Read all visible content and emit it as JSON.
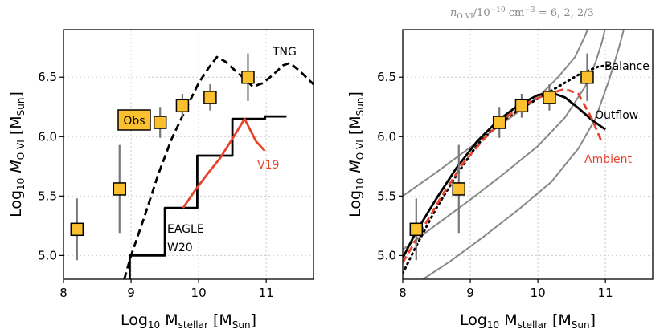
{
  "colors": {
    "marker_fill": "#fbc02d",
    "marker_edge": "#000000",
    "errorbar": "#777777",
    "red": "#e8432a",
    "gray_curve": "#888888",
    "black": "#000000",
    "grid": "#cccccc"
  },
  "chart_data": [
    {
      "id": "left",
      "type": "line",
      "xlim": [
        8,
        11.7
      ],
      "ylim": [
        4.8,
        6.9
      ],
      "xticks": [
        8,
        9,
        10,
        11
      ],
      "yticks": [
        5.0,
        5.5,
        6.0,
        6.5
      ],
      "xtick_labels": [
        "8",
        "9",
        "10",
        "11"
      ],
      "ytick_labels": [
        "5.0",
        "5.5",
        "6.0",
        "6.5"
      ],
      "grid": true,
      "xlabel": {
        "pre": "Log",
        "sub": "10",
        "mid": " M",
        "sub2": "stellar",
        "post": " [M",
        "sub3": "Sun",
        "end": "]"
      },
      "ylabel": {
        "pre": "Log",
        "sub": "10",
        "mid": " M",
        "sub2": "O VI",
        "post": " [M",
        "sub3": "Sun",
        "end": "]"
      },
      "observations": {
        "label": "Obs",
        "points": [
          {
            "x": 8.2,
            "y": 5.22,
            "err": 0.26
          },
          {
            "x": 8.83,
            "y": 5.56,
            "err": 0.37
          },
          {
            "x": 9.43,
            "y": 6.12,
            "err": 0.13
          },
          {
            "x": 9.76,
            "y": 6.26,
            "err": 0.1
          },
          {
            "x": 10.17,
            "y": 6.33,
            "err": 0.11
          },
          {
            "x": 10.73,
            "y": 6.5,
            "err": 0.2
          }
        ]
      },
      "series": [
        {
          "name": "TNG",
          "style": "dashed",
          "color": "#000000",
          "points": [
            [
              8.9,
              4.8
            ],
            [
              9.0,
              5.0
            ],
            [
              9.2,
              5.33
            ],
            [
              9.4,
              5.68
            ],
            [
              9.6,
              5.98
            ],
            [
              9.8,
              6.22
            ],
            [
              10.0,
              6.45
            ],
            [
              10.15,
              6.58
            ],
            [
              10.27,
              6.67
            ],
            [
              10.4,
              6.63
            ],
            [
              10.55,
              6.55
            ],
            [
              10.7,
              6.48
            ],
            [
              10.8,
              6.42
            ],
            [
              10.95,
              6.45
            ],
            [
              11.1,
              6.52
            ],
            [
              11.25,
              6.6
            ],
            [
              11.35,
              6.62
            ],
            [
              11.5,
              6.55
            ],
            [
              11.7,
              6.44
            ]
          ]
        },
        {
          "name": "EAGLE W20",
          "style": "solid",
          "color": "#000000",
          "points": [
            [
              8.98,
              4.8
            ],
            [
              8.98,
              5.0
            ],
            [
              9.5,
              5.0
            ],
            [
              9.5,
              5.4
            ],
            [
              9.98,
              5.4
            ],
            [
              9.98,
              5.84
            ],
            [
              10.5,
              5.84
            ],
            [
              10.5,
              6.15
            ],
            [
              10.98,
              6.15
            ],
            [
              10.98,
              6.17
            ],
            [
              11.3,
              6.17
            ]
          ]
        },
        {
          "name": "V19",
          "style": "solid",
          "color": "#e8432a",
          "points": [
            [
              9.77,
              5.4
            ],
            [
              9.95,
              5.55
            ],
            [
              10.15,
              5.7
            ],
            [
              10.32,
              5.82
            ],
            [
              10.52,
              6.0
            ],
            [
              10.68,
              6.15
            ],
            [
              10.85,
              5.96
            ],
            [
              10.98,
              5.88
            ]
          ]
        }
      ],
      "annotations": [
        "TNG",
        "EAGLE",
        "W20",
        "V19"
      ]
    },
    {
      "id": "right",
      "type": "line",
      "xlim": [
        8,
        11.7
      ],
      "ylim": [
        4.8,
        6.9
      ],
      "xticks": [
        8,
        9,
        10,
        11
      ],
      "yticks": [
        5.0,
        5.5,
        6.0,
        6.5
      ],
      "xtick_labels": [
        "8",
        "9",
        "10",
        "11"
      ],
      "ytick_labels": [
        "5.0",
        "5.5",
        "6.0",
        "6.5"
      ],
      "grid": true,
      "xlabel": {
        "pre": "Log",
        "sub": "10",
        "mid": " M",
        "sub2": "stellar",
        "post": " [M",
        "sub3": "Sun",
        "end": "]"
      },
      "ylabel": {
        "pre": "Log",
        "sub": "10",
        "mid": " M",
        "sub2": "O VI",
        "post": " [M",
        "sub3": "Sun",
        "end": "]"
      },
      "top_annotation": {
        "n": "n",
        "sub": "O VI",
        "rest": "/10",
        "sup1": "−10",
        "unit": " cm",
        "sup2": "−3",
        "vals": " = 6, 2, 2/3"
      },
      "observations": {
        "points": [
          {
            "x": 8.2,
            "y": 5.22,
            "err": 0.26
          },
          {
            "x": 8.83,
            "y": 5.56,
            "err": 0.37
          },
          {
            "x": 9.43,
            "y": 6.12,
            "err": 0.13
          },
          {
            "x": 9.76,
            "y": 6.26,
            "err": 0.1
          },
          {
            "x": 10.17,
            "y": 6.33,
            "err": 0.11
          },
          {
            "x": 10.73,
            "y": 6.5,
            "err": 0.2
          }
        ]
      },
      "series": [
        {
          "name": "n=6",
          "style": "solid",
          "color": "#888888",
          "points": [
            [
              8.0,
              5.5
            ],
            [
              8.5,
              5.7
            ],
            [
              9.0,
              5.91
            ],
            [
              9.5,
              6.12
            ],
            [
              10.0,
              6.33
            ],
            [
              10.3,
              6.5
            ],
            [
              10.55,
              6.67
            ],
            [
              10.7,
              6.85
            ],
            [
              10.75,
              6.92
            ]
          ]
        },
        {
          "name": "n=2",
          "style": "solid",
          "color": "#888888",
          "points": [
            [
              8.0,
              5.05
            ],
            [
              8.5,
              5.26
            ],
            [
              9.0,
              5.47
            ],
            [
              9.5,
              5.69
            ],
            [
              10.0,
              5.92
            ],
            [
              10.4,
              6.16
            ],
            [
              10.7,
              6.42
            ],
            [
              10.85,
              6.62
            ],
            [
              10.95,
              6.8
            ],
            [
              11.0,
              6.92
            ]
          ]
        },
        {
          "name": "n=2/3",
          "style": "solid",
          "color": "#888888",
          "points": [
            [
              8.3,
              4.8
            ],
            [
              8.7,
              4.95
            ],
            [
              9.2,
              5.16
            ],
            [
              9.7,
              5.38
            ],
            [
              10.2,
              5.62
            ],
            [
              10.6,
              5.9
            ],
            [
              10.85,
              6.15
            ],
            [
              11.05,
              6.47
            ],
            [
              11.2,
              6.75
            ],
            [
              11.28,
              6.92
            ]
          ]
        },
        {
          "name": "Balance",
          "style": "dotted",
          "color": "#000000",
          "points": [
            [
              8.0,
              4.85
            ],
            [
              8.2,
              5.08
            ],
            [
              8.5,
              5.4
            ],
            [
              8.8,
              5.68
            ],
            [
              9.1,
              5.93
            ],
            [
              9.4,
              6.1
            ],
            [
              9.7,
              6.22
            ],
            [
              10.0,
              6.32
            ],
            [
              10.3,
              6.42
            ],
            [
              10.6,
              6.52
            ],
            [
              10.9,
              6.59
            ],
            [
              11.1,
              6.6
            ]
          ]
        },
        {
          "name": "Outflow",
          "style": "solid",
          "color": "#000000",
          "points": [
            [
              8.0,
              4.98
            ],
            [
              8.2,
              5.2
            ],
            [
              8.5,
              5.48
            ],
            [
              8.8,
              5.74
            ],
            [
              9.1,
              5.96
            ],
            [
              9.4,
              6.13
            ],
            [
              9.7,
              6.26
            ],
            [
              10.0,
              6.35
            ],
            [
              10.2,
              6.37
            ],
            [
              10.4,
              6.33
            ],
            [
              10.6,
              6.24
            ],
            [
              10.8,
              6.14
            ],
            [
              11.0,
              6.06
            ]
          ]
        },
        {
          "name": "Ambient",
          "style": "dashed",
          "color": "#e8432a",
          "points": [
            [
              8.0,
              4.94
            ],
            [
              8.3,
              5.23
            ],
            [
              8.6,
              5.52
            ],
            [
              8.9,
              5.78
            ],
            [
              9.2,
              5.98
            ],
            [
              9.5,
              6.15
            ],
            [
              9.8,
              6.27
            ],
            [
              10.1,
              6.35
            ],
            [
              10.4,
              6.4
            ],
            [
              10.6,
              6.36
            ],
            [
              10.8,
              6.15
            ],
            [
              10.95,
              5.95
            ]
          ]
        }
      ],
      "annotations": [
        "Balance",
        "Outflow",
        "Ambient"
      ]
    }
  ]
}
